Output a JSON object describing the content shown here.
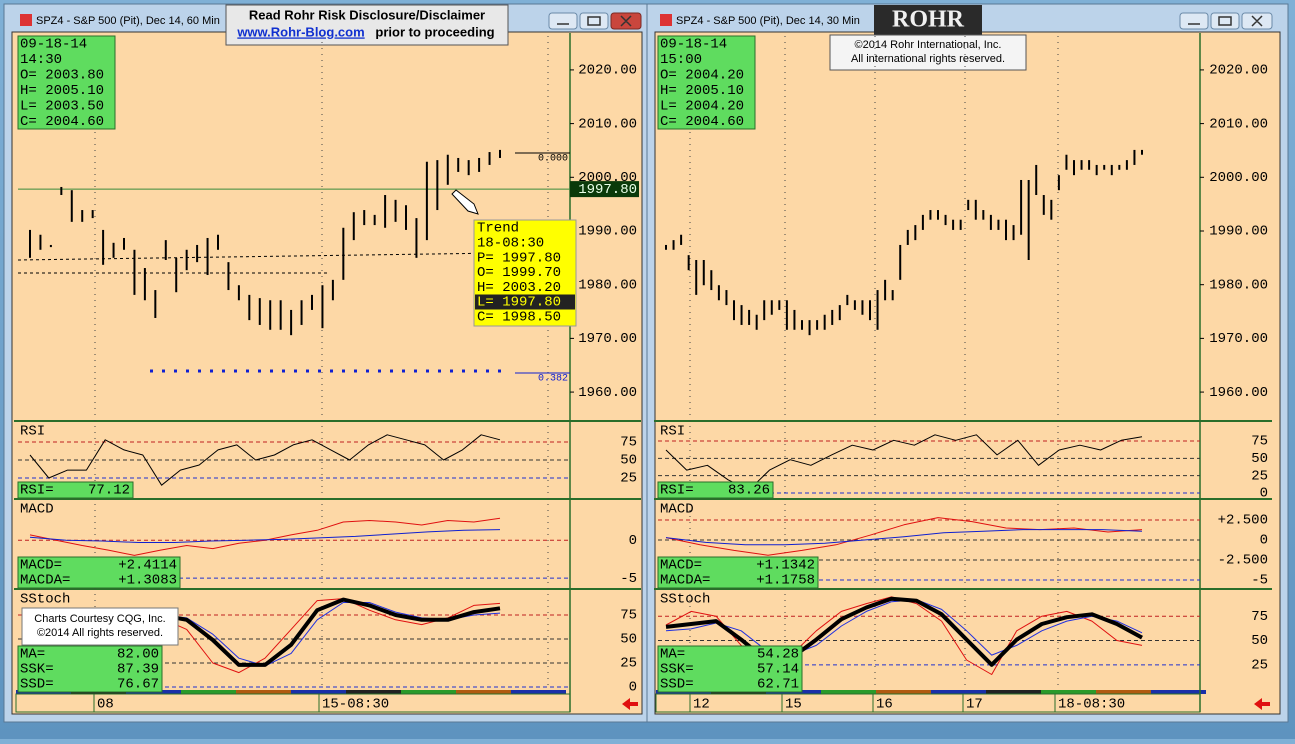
{
  "banner": {
    "line1": "Read Rohr Risk Disclosure/Disclaimer",
    "link": "www.Rohr-Blog.com",
    "line2": "prior to proceeding"
  },
  "logo": "ROHR",
  "copyright": [
    "©2014 Rohr International, Inc.",
    "All international rights reserved."
  ],
  "courtesy": [
    "Charts Courtesy CQG, Inc.",
    "©2014 All rights reserved."
  ],
  "windows": [
    {
      "title": "SPZ4 - S&P 500 (Pit), Dec 14, 60 Min",
      "info": [
        "09-18-14",
        "14:30",
        "O= 2003.80",
        "H= 2005.10",
        "L= 2003.50",
        "C= 2004.60"
      ],
      "price": {
        "ylim": [
          1954.8,
          2026.5
        ],
        "yticks": [
          {
            "value": 2020,
            "label": "2020.00"
          },
          {
            "value": 2010,
            "label": "2010.00"
          },
          {
            "value": 2000,
            "label": "2000.00"
          },
          {
            "value": 1990,
            "label": "1990.00"
          },
          {
            "value": 1980,
            "label": "1980.00"
          },
          {
            "value": 1970,
            "label": "1970.00"
          },
          {
            "value": 1960,
            "label": "1960.00"
          }
        ],
        "high": [
          1990.2,
          1989.3,
          1987.4,
          1998.2,
          1997.6,
          1993.9,
          1993.9,
          1990.2,
          1987.8,
          1988.7,
          1986.5,
          1983.1,
          1979.0,
          1988.3,
          1985.0,
          1986.5,
          1987.4,
          1988.7,
          1989.3,
          1984.2,
          1979.9,
          1978.1,
          1977.5,
          1977.1,
          1977.1,
          1975.3,
          1977.1,
          1978.1,
          1979.9,
          1980.9,
          1990.6,
          1993.5,
          1993.9,
          1993.0,
          1996.7,
          1995.8,
          1994.8,
          1992.4,
          2002.9,
          2003.2,
          2004.2,
          2003.6,
          2003.2,
          2003.6,
          2004.7,
          2005.1
        ],
        "low": [
          1985.0,
          1986.5,
          1987.0,
          1996.7,
          1991.7,
          1991.7,
          1992.4,
          1983.7,
          1985.0,
          1986.5,
          1978.1,
          1977.1,
          1973.8,
          1984.6,
          1978.6,
          1982.7,
          1984.2,
          1981.8,
          1986.5,
          1979.0,
          1977.1,
          1973.4,
          1972.5,
          1971.6,
          1971.6,
          1970.6,
          1972.5,
          1975.3,
          1971.9,
          1977.1,
          1980.9,
          1988.3,
          1991.1,
          1991.1,
          1990.6,
          1991.7,
          1990.2,
          1985.0,
          1988.3,
          1993.9,
          1998.6,
          2001.0,
          2000.4,
          2001.0,
          2002.3,
          2003.6
        ],
        "price_label": {
          "value": 1997.8,
          "label": "1997.80"
        },
        "fib": [
          "0.000",
          "0.382"
        ]
      },
      "trend": [
        "Trend",
        "18-08:30",
        "P= 1997.80",
        "O= 1999.70",
        "H= 2003.20",
        "L= 1997.80",
        "C= 1998.50"
      ],
      "rsi": {
        "label": "RSI",
        "ylim": [
          -2.8,
          102.8
        ],
        "yticks": [
          75,
          50,
          25
        ],
        "values": [
          57,
          25,
          36,
          36,
          78,
          64,
          57,
          15,
          36,
          43,
          64,
          71,
          50,
          57,
          71,
          78,
          64,
          50,
          71,
          85,
          78,
          71,
          50,
          64,
          85,
          78
        ],
        "readout": [
          [
            "RSI=",
            "77.12"
          ]
        ]
      },
      "macd": {
        "label": "MACD",
        "ylim": [
          -6.3,
          5.3
        ],
        "yticks": [
          0,
          -5
        ],
        "series": [
          {
            "color": "#e01010",
            "values": [
              0.7,
              0,
              -0.7,
              -1.3,
              -2.0,
              -1.3,
              -0.7,
              -1.1,
              -0.4,
              0,
              0.7,
              1.3,
              2.4,
              2.6,
              2.4,
              2.0,
              2.6,
              2.4,
              2.9
            ]
          },
          {
            "color": "#1020d0",
            "values": [
              0.4,
              0,
              -0.1,
              -0.3,
              -0.3,
              -0.1,
              0,
              0.1,
              0.3,
              0.5,
              0.8,
              1.1,
              1.3,
              1.4
            ]
          }
        ],
        "readout": [
          [
            "MACD=",
            "+2.4114"
          ],
          [
            "MACDA=",
            "+1.3083"
          ]
        ]
      },
      "sstoch": {
        "label": "SStoch",
        "ylim": [
          -3.1,
          101
        ],
        "yticks": [
          75,
          50,
          25,
          0
        ],
        "series": [
          {
            "color": "#e01010",
            "values": [
              15,
              20,
              30,
              65,
              75,
              72,
              60,
              25,
              15,
              30,
              60,
              90,
              92,
              80,
              70,
              65,
              72,
              85,
              87
            ]
          },
          {
            "color": "#2030e0",
            "values": [
              25,
              22,
              20,
              40,
              65,
              75,
              72,
              55,
              30,
              22,
              35,
              70,
              88,
              88,
              78,
              72,
              70,
              75,
              77
            ]
          },
          {
            "color": "#000000",
            "values": [
              20,
              20,
              23,
              49,
              70,
              75,
              70,
              49,
              23,
              23,
              44,
              80,
              91,
              85,
              75,
              70,
              70,
              78,
              82
            ]
          }
        ],
        "readout": [
          [
            "MA=",
            "82.00"
          ],
          [
            "SSK=",
            "87.39"
          ],
          [
            "SSD=",
            "76.67"
          ]
        ]
      },
      "time_labels": [
        "08",
        "15-08:30"
      ]
    },
    {
      "title": "SPZ4 - S&P 500 (Pit), Dec 14, 30 Min",
      "info": [
        "09-18-14",
        "15:00",
        "O= 2004.20",
        "H= 2005.10",
        "L= 2004.20",
        "C= 2004.60"
      ],
      "price": {
        "ylim": [
          1954.8,
          2026.5
        ],
        "yticks": [
          {
            "value": 2020,
            "label": "2020.00"
          },
          {
            "value": 2010,
            "label": "2010.00"
          },
          {
            "value": 2000,
            "label": "2000.00"
          },
          {
            "value": 1990,
            "label": "1990.00"
          },
          {
            "value": 1980,
            "label": "1980.00"
          },
          {
            "value": 1970,
            "label": "1970.00"
          },
          {
            "value": 1960,
            "label": "1960.00"
          }
        ],
        "high": [
          1987.4,
          1988.3,
          1989.3,
          1985.5,
          1984.6,
          1984.6,
          1982.7,
          1979.9,
          1979.0,
          1977.1,
          1976.2,
          1975.3,
          1974.4,
          1977.1,
          1977.1,
          1977.1,
          1977.1,
          1975.3,
          1973.4,
          1973.4,
          1973.4,
          1974.4,
          1975.3,
          1976.2,
          1978.1,
          1977.1,
          1977.1,
          1977.1,
          1979.0,
          1980.9,
          1979.0,
          1987.4,
          1990.2,
          1991.1,
          1993.0,
          1993.9,
          1993.9,
          1993.0,
          1992.1,
          1992.1,
          1995.8,
          1995.8,
          1993.9,
          1993.0,
          1992.1,
          1992.1,
          1991.1,
          1999.5,
          1999.5,
          2002.3,
          1996.7,
          1995.8,
          2000.4,
          2004.2,
          2003.2,
          2003.2,
          2003.2,
          2002.3,
          2002.3,
          2002.3,
          2002.3,
          2003.2,
          2005.1,
          2005.1
        ],
        "low": [
          1986.5,
          1986.5,
          1987.4,
          1982.7,
          1978.1,
          1979.9,
          1979.0,
          1977.1,
          1976.2,
          1973.4,
          1972.5,
          1972.5,
          1971.6,
          1973.4,
          1974.4,
          1975.3,
          1971.6,
          1971.6,
          1971.6,
          1970.6,
          1971.6,
          1971.6,
          1972.5,
          1973.4,
          1976.2,
          1975.3,
          1974.4,
          1973.4,
          1971.6,
          1977.1,
          1977.1,
          1980.9,
          1987.4,
          1988.3,
          1990.2,
          1992.1,
          1992.1,
          1991.1,
          1990.2,
          1990.2,
          1993.9,
          1992.1,
          1992.1,
          1990.2,
          1990.2,
          1988.3,
          1988.3,
          1989.3,
          1984.6,
          1996.7,
          1993.0,
          1992.1,
          1997.6,
          2001.4,
          2000.4,
          2001.4,
          2001.4,
          2000.4,
          2001.4,
          2000.4,
          2001.4,
          2001.4,
          2002.3,
          2004.2
        ]
      },
      "rsi": {
        "label": "RSI",
        "ylim": [
          -7.2,
          102.4
        ],
        "yticks": [
          75,
          50,
          25,
          0
        ],
        "values": [
          62,
          33,
          40,
          19,
          4,
          33,
          48,
          40,
          55,
          69,
          62,
          76,
          69,
          84,
          76,
          84,
          55,
          76,
          40,
          62,
          69,
          62,
          76,
          81
        ],
        "readout": [
          [
            "RSI=",
            "83.26"
          ]
        ]
      },
      "macd": {
        "label": "MACD",
        "ylim": [
          -6.0,
          5.0
        ],
        "yticks": [
          {
            "value": 2.5,
            "label": "+2.500"
          },
          0,
          {
            "value": -2.5,
            "label": "-2.500"
          },
          -5
        ],
        "series": [
          {
            "color": "#e01010",
            "values": [
              0.3,
              -0.6,
              -1.3,
              -1.9,
              -1.3,
              -0.6,
              0.6,
              1.9,
              2.8,
              2.3,
              1.5,
              1.3,
              1.5,
              1.0,
              1.3
            ]
          },
          {
            "color": "#1020d0",
            "values": [
              0.3,
              -0.3,
              -0.6,
              -0.6,
              -0.4,
              0,
              0.4,
              0.9,
              1.1,
              1.3,
              1.3,
              1.3,
              1.1
            ]
          }
        ],
        "readout": [
          [
            "MACD=",
            "+1.1342"
          ],
          [
            "MACDA=",
            "+1.1758"
          ]
        ]
      },
      "sstoch": {
        "label": "SStoch",
        "ylim": [
          -0.9,
          102.0
        ],
        "yticks": [
          75,
          50,
          25
        ],
        "series": [
          {
            "color": "#e01010",
            "values": [
              66,
              80,
              75,
              45,
              25,
              35,
              60,
              80,
              88,
              95,
              88,
              70,
              30,
              15,
              60,
              75,
              80,
              70,
              50,
              45
            ]
          },
          {
            "color": "#2030e0",
            "values": [
              60,
              62,
              68,
              60,
              40,
              35,
              45,
              65,
              80,
              90,
              92,
              82,
              60,
              35,
              45,
              60,
              70,
              75,
              70,
              58
            ]
          },
          {
            "color": "#000000",
            "values": [
              64,
              67,
              70,
              51,
              30,
              32,
              51,
              72,
              84,
              93,
              91,
              77,
              51,
              25,
              51,
              67,
              74,
              77,
              67,
              53
            ]
          }
        ],
        "readout": [
          [
            "MA=",
            "54.28"
          ],
          [
            "SSK=",
            "57.14"
          ],
          [
            "SSD=",
            "62.71"
          ]
        ]
      },
      "time_labels": [
        "12",
        "15",
        "16",
        "17",
        "18-08:30"
      ]
    }
  ]
}
